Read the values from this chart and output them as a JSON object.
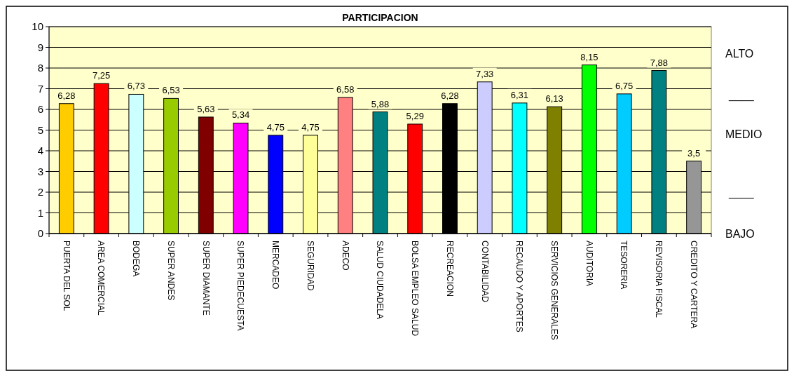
{
  "chart_data": {
    "type": "bar",
    "title": "PARTICIPACION",
    "categories": [
      "PUERTA DEL SOL",
      "AREA COMERCIAL",
      "BODEGA",
      "SUPER ANDES",
      "SUPER DIAMANTE",
      "SUPER PIEDECUESTA",
      "MERCADEO",
      "SEGURIDAD",
      "ADECO",
      "SALUD CIUDADELA",
      "BOLSA EMPLEO SALUD",
      "RECREACION",
      "CONTABILIDAD",
      "RECAUDO Y APORTES",
      "SERVICIOS GENERALES",
      "AUDITORIA",
      "TESORERIA",
      "REVISORIA FISCAL",
      "CREDITO Y CARTERA"
    ],
    "values": [
      6.28,
      7.25,
      6.73,
      6.53,
      5.63,
      5.34,
      4.75,
      4.75,
      6.58,
      5.88,
      5.29,
      6.28,
      7.33,
      6.31,
      6.13,
      8.15,
      6.75,
      7.88,
      3.5
    ],
    "value_labels": [
      "6,28",
      "7,25",
      "6,73",
      "6,53",
      "5,63",
      "5,34",
      "4,75",
      "4,75",
      "6,58",
      "5,88",
      "5,29",
      "6,28",
      "7,33",
      "6,31",
      "6,13",
      "8,15",
      "6,75",
      "7,88",
      "3,5"
    ],
    "colors": [
      "#ffcc00",
      "#ff0000",
      "#ccffff",
      "#99cc00",
      "#800000",
      "#ff00ff",
      "#0000ff",
      "#ffff99",
      "#ff8080",
      "#008080",
      "#ff0000",
      "#000000",
      "#ccccff",
      "#00ffff",
      "#808000",
      "#00ff00",
      "#00ccff",
      "#008080",
      "#969696"
    ],
    "ylim": [
      0,
      10
    ],
    "yticks": [
      0,
      1,
      2,
      3,
      4,
      5,
      6,
      7,
      8,
      9,
      10
    ],
    "grid": "y",
    "annotations": [
      "ALTO",
      "____",
      "MEDIO",
      "____",
      "BAJO"
    ]
  }
}
